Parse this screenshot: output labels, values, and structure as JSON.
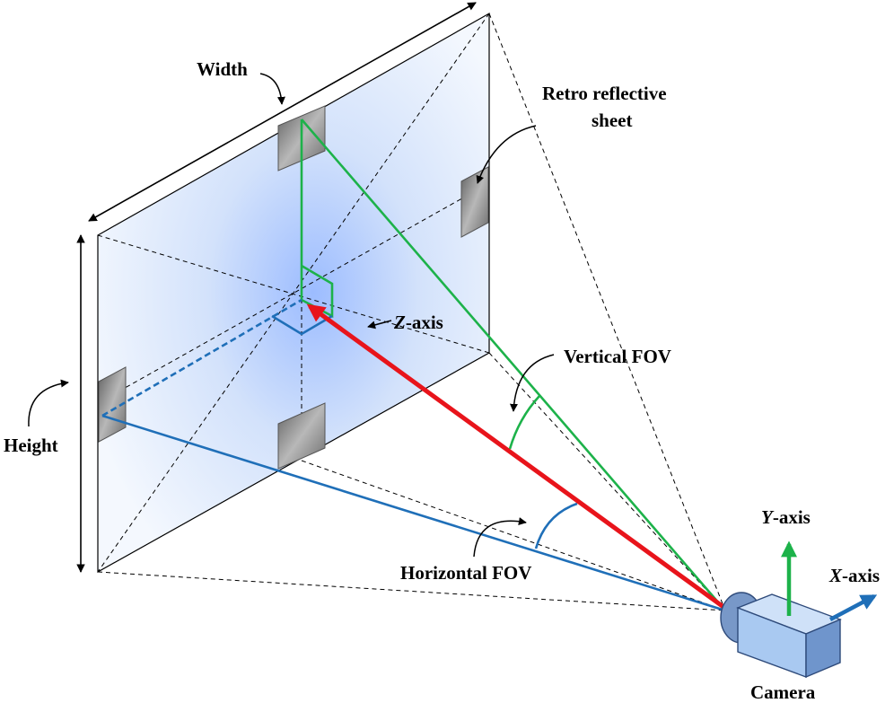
{
  "labels": {
    "width": "Width",
    "height": "Height",
    "retro_line1": "Retro reflective",
    "retro_line2": "sheet",
    "z_axis_letter": "Z",
    "z_axis_suffix": "-axis",
    "vertical_fov": "Vertical FOV",
    "horizontal_fov": "Horizontal FOV",
    "y_axis_letter": "Y",
    "y_axis_suffix": "-axis",
    "x_axis_letter": "X",
    "x_axis_suffix": "-axis",
    "camera": "Camera"
  },
  "colors": {
    "green": "#1db24a",
    "blue": "#1f6fb8",
    "red": "#e8141b",
    "panel_tint": "#a9c6ff",
    "marker": "#7a7a7a",
    "camera_body": "#a6c8f2"
  }
}
